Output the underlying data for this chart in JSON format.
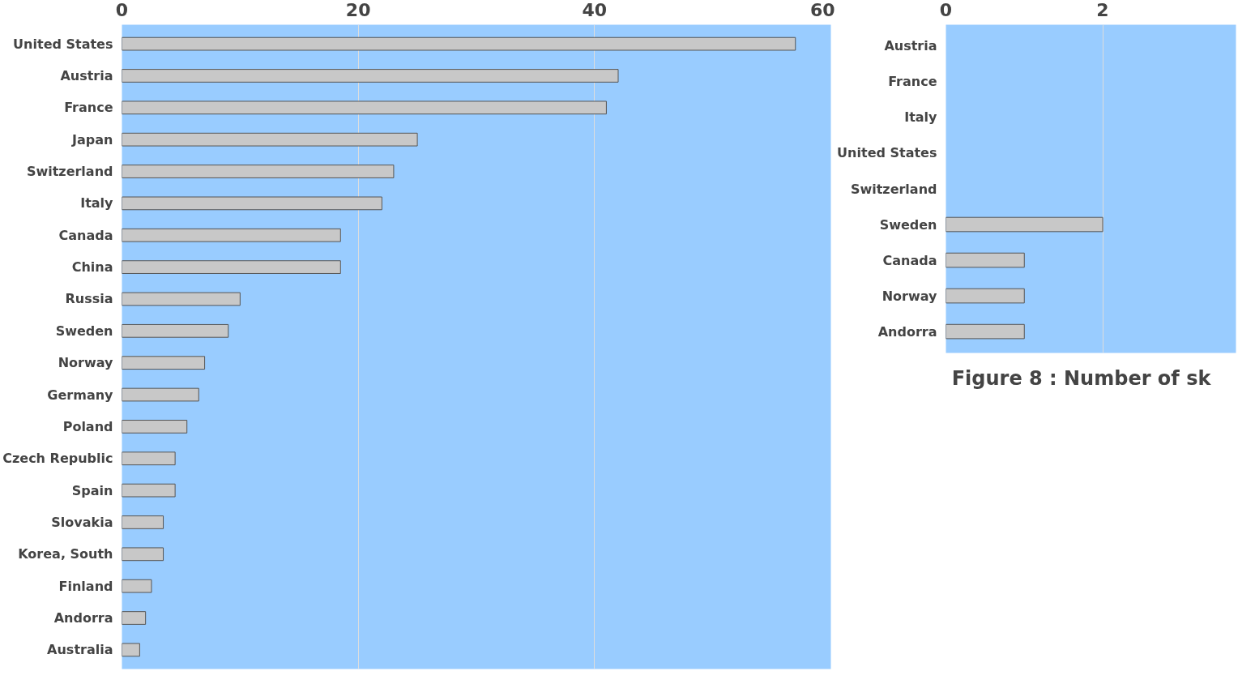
{
  "chart_data": [
    {
      "type": "bar",
      "orientation": "horizontal",
      "categories": [
        "United States",
        "Austria",
        "France",
        "Japan",
        "Switzerland",
        "Italy",
        "Canada",
        "China",
        "Russia",
        "Sweden",
        "Norway",
        "Germany",
        "Poland",
        "Czech Republic",
        "Spain",
        "Slovakia",
        "Korea, South",
        "Finland",
        "Andorra",
        "Australia"
      ],
      "values": [
        57,
        42,
        41,
        25,
        23,
        22,
        18.5,
        18.5,
        10,
        9,
        7,
        6.5,
        5.5,
        4.5,
        4.5,
        3.5,
        3.5,
        2.5,
        2,
        1.5
      ],
      "color": "#c8c8c8",
      "xlim": [
        0,
        60
      ],
      "xticks": [
        0,
        20,
        40,
        60
      ],
      "grid": "x"
    },
    {
      "type": "bar",
      "orientation": "horizontal",
      "categories": [
        "Austria",
        "France",
        "Italy",
        "United States",
        "Switzerland",
        "Sweden",
        "Canada",
        "Norway",
        "Andorra"
      ],
      "values": [
        null,
        null,
        null,
        null,
        null,
        2,
        1,
        1,
        1
      ],
      "color": "#c8c8c8",
      "xlim": [
        0,
        3.7
      ],
      "xticks": [
        0,
        2
      ],
      "grid": "x",
      "annotations": [
        "Figure 8 : Number of sk"
      ]
    }
  ]
}
